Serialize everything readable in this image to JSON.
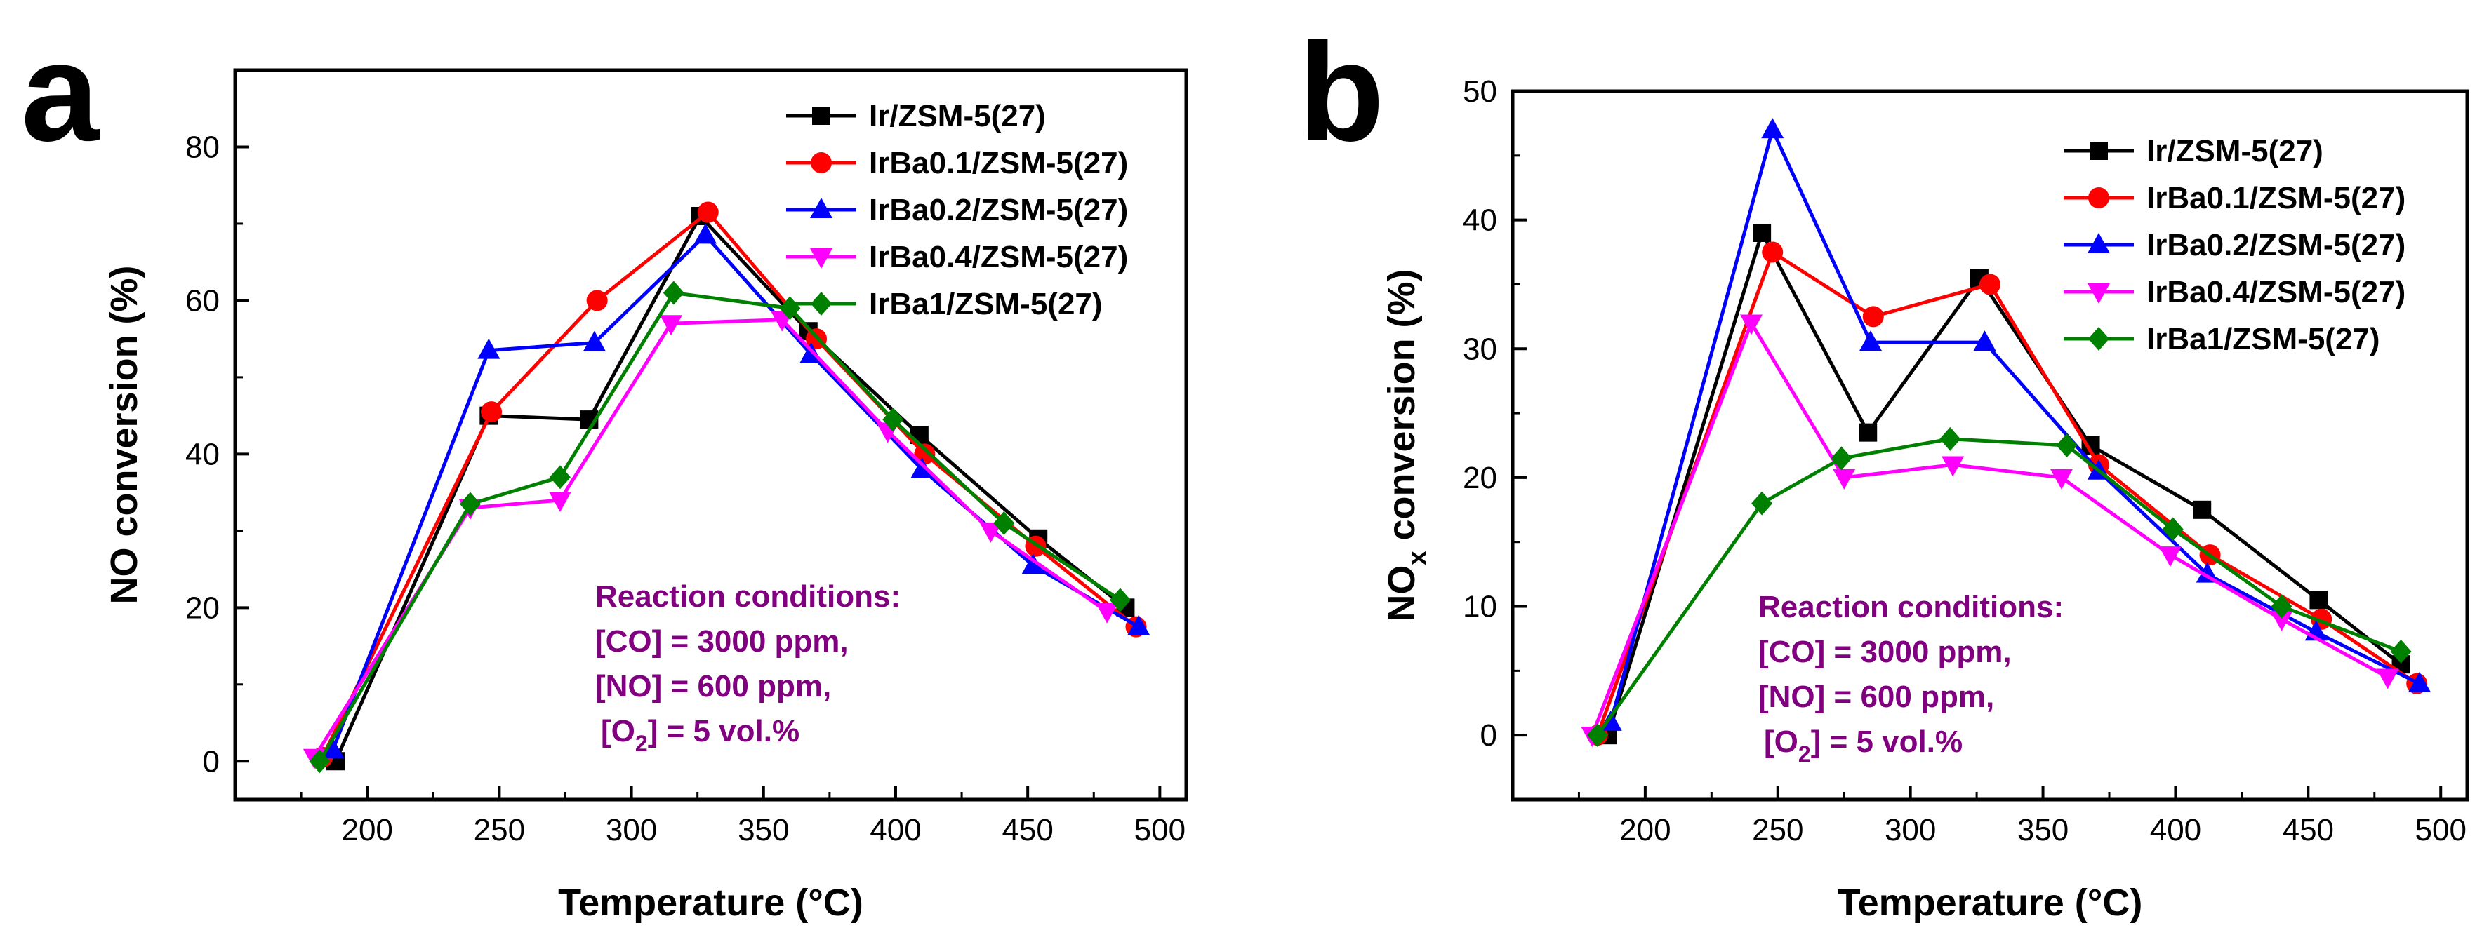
{
  "figure": {
    "series_style": [
      {
        "color": "#000000",
        "marker": "square"
      },
      {
        "color": "#ff0000",
        "marker": "circle"
      },
      {
        "color": "#0000ff",
        "marker": "triangle-up"
      },
      {
        "color": "#ff00ff",
        "marker": "triangle-down"
      },
      {
        "color": "#008000",
        "marker": "diamond"
      }
    ],
    "conditions_color": "#800080"
  },
  "chart_data": [
    {
      "type": "line",
      "panel_label": "a",
      "xlabel": "Temperature (°C)",
      "ylabel": "NO conversion (%)",
      "ylabel_sub": "",
      "ylabel_rest": "",
      "xlim": [
        150,
        510
      ],
      "ylim": [
        -5,
        90
      ],
      "xticks": [
        200,
        250,
        300,
        350,
        400,
        450,
        500
      ],
      "yticks": [
        0,
        20,
        40,
        60,
        80
      ],
      "conditions": {
        "title": "Reaction conditions:",
        "line1": "[CO] = 3000 ppm,",
        "line2": "[NO] = 600 ppm,",
        "line3_pre": "[O",
        "line3_sub": "2",
        "line3_post": "] = 5 vol.%"
      },
      "series": [
        {
          "name": "Ir/ZSM-5(27)",
          "x": [
            188,
            246,
            284,
            326,
            367,
            409,
            454,
            487
          ],
          "y": [
            0,
            45,
            44.5,
            71,
            56,
            42.5,
            29,
            20
          ]
        },
        {
          "name": "IrBa0.1/ZSM-5(27)",
          "x": [
            183,
            247,
            287,
            329,
            370,
            411,
            453,
            491
          ],
          "y": [
            0.5,
            45.5,
            60,
            71.5,
            55,
            40,
            28,
            17.5
          ]
        },
        {
          "name": "IrBa0.2/ZSM-5(27)",
          "x": [
            187,
            246,
            286,
            328,
            368,
            410,
            452,
            492
          ],
          "y": [
            1.5,
            53.5,
            54.5,
            68.5,
            53,
            38,
            25.5,
            17.5
          ]
        },
        {
          "name": "IrBa0.4/ZSM-5(27)",
          "x": [
            180,
            239,
            273,
            315,
            357,
            397,
            436,
            480
          ],
          "y": [
            0.5,
            33,
            34,
            57,
            57.5,
            43,
            30,
            19.5
          ]
        },
        {
          "name": "IrBa1/ZSM-5(27)",
          "x": [
            182,
            239,
            273,
            316,
            360,
            399,
            441,
            485
          ],
          "y": [
            0,
            33.5,
            37,
            61,
            59,
            44.5,
            31,
            21
          ]
        }
      ]
    },
    {
      "type": "line",
      "panel_label": "b",
      "xlabel": "Temperature (°C)",
      "ylabel": "NO",
      "ylabel_sub": "x",
      "ylabel_rest": " conversion (%)",
      "xlim": [
        150,
        510
      ],
      "ylim": [
        -5,
        50
      ],
      "xticks": [
        200,
        250,
        300,
        350,
        400,
        450,
        500
      ],
      "yticks": [
        0,
        10,
        20,
        30,
        40,
        50
      ],
      "conditions": {
        "title": "Reaction conditions:",
        "line1": "[CO] = 3000 ppm,",
        "line2": "[NO] = 600 ppm,",
        "line3_pre": "[O",
        "line3_sub": "2",
        "line3_post": "] = 5 vol.%"
      },
      "series": [
        {
          "name": "Ir/ZSM-5(27)",
          "x": [
            186,
            244,
            284,
            326,
            368,
            410,
            454,
            485
          ],
          "y": [
            0,
            39,
            23.5,
            35.5,
            22.5,
            17.5,
            10.5,
            5.5
          ]
        },
        {
          "name": "IrBa0.1/ZSM-5(27)",
          "x": [
            182,
            248,
            286,
            330,
            371,
            413,
            455,
            491
          ],
          "y": [
            0,
            37.5,
            32.5,
            35,
            21,
            14,
            9,
            4
          ]
        },
        {
          "name": "IrBa0.2/ZSM-5(27)",
          "x": [
            187,
            248,
            285,
            328,
            371,
            412,
            453,
            492
          ],
          "y": [
            1,
            47,
            30.5,
            30.5,
            20.5,
            12.5,
            8,
            4
          ]
        },
        {
          "name": "IrBa0.4/ZSM-5(27)",
          "x": [
            180,
            240,
            275,
            316,
            357,
            398,
            440,
            480
          ],
          "y": [
            0,
            32,
            20,
            21,
            20,
            14,
            9,
            4.5
          ]
        },
        {
          "name": "IrBa1/ZSM-5(27)",
          "x": [
            182,
            244,
            274,
            315,
            359,
            399,
            440,
            485
          ],
          "y": [
            0,
            18,
            21.5,
            23,
            22.5,
            16,
            10,
            6.5
          ]
        }
      ]
    }
  ]
}
